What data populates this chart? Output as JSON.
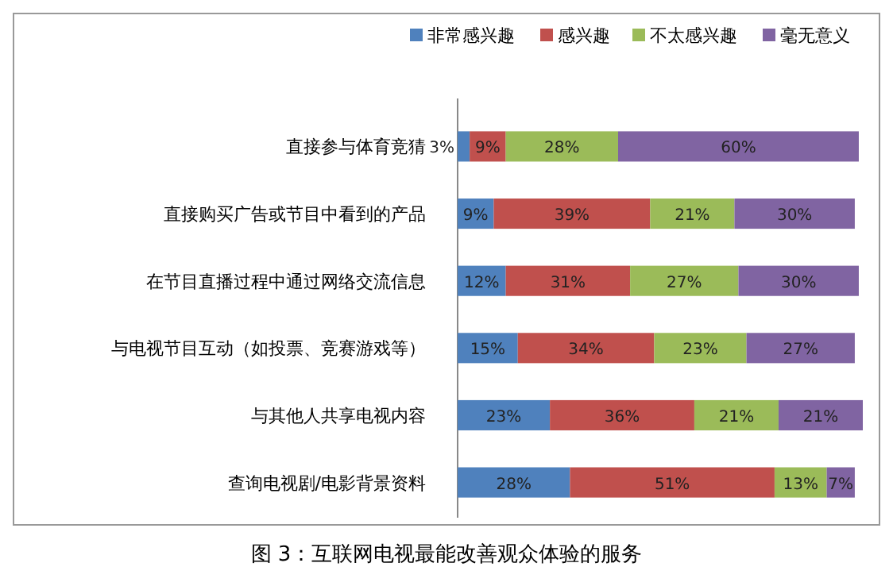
{
  "chart_data": {
    "type": "bar",
    "orientation": "horizontal",
    "stacked": true,
    "legend": "top",
    "title": "图 3：互联网电视最能改善观众体验的服务",
    "categories": [
      "直接参与体育竞猜",
      "直接购买广告或节目中看到的产品",
      "在节目直播过程中通过网络交流信息",
      "与电视节目互动（如投票、竞赛游戏等）",
      "与其他人共享电视内容",
      "查询电视剧/电影背景资料"
    ],
    "series": [
      {
        "name": "非常感兴趣",
        "color": "#4f81bd",
        "values": [
          3,
          9,
          12,
          15,
          23,
          28
        ],
        "value_labels": [
          "3%",
          "9%",
          "12%",
          "15%",
          "23%",
          "28%"
        ]
      },
      {
        "name": "感兴趣",
        "color": "#c0504d",
        "values": [
          9,
          39,
          31,
          34,
          36,
          51
        ],
        "value_labels": [
          "9%",
          "39%",
          "31%",
          "34%",
          "36%",
          "51%"
        ]
      },
      {
        "name": "不太感兴趣",
        "color": "#9bbb59",
        "values": [
          28,
          21,
          27,
          23,
          21,
          13
        ],
        "value_labels": [
          "28%",
          "21%",
          "27%",
          "23%",
          "21%",
          "13%"
        ]
      },
      {
        "name": "毫无意义",
        "color": "#8064a2",
        "values": [
          60,
          30,
          30,
          27,
          21,
          7
        ],
        "value_labels": [
          "60%",
          "30%",
          "30%",
          "27%",
          "21%",
          "7%"
        ]
      }
    ]
  }
}
